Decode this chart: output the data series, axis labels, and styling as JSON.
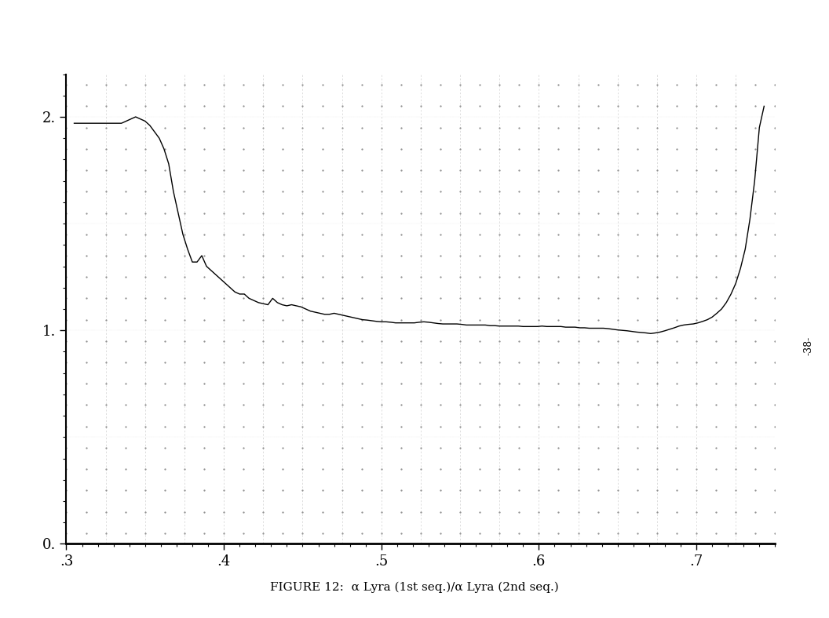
{
  "xlabel": "FIGURE 12:  α Lyra (1st seq.)/α Lyra (2nd seq.)",
  "xlim": [
    0.3,
    0.75
  ],
  "ylim": [
    0.0,
    2.2
  ],
  "xticks": [
    0.3,
    0.4,
    0.5,
    0.6,
    0.7
  ],
  "yticks": [
    0.0,
    1.0,
    2.0
  ],
  "ytick_labels": [
    "0.",
    "1.",
    "2."
  ],
  "xtick_labels": [
    ".3",
    ".4",
    ".5",
    ".6",
    ".7"
  ],
  "side_label": "-38-",
  "background_color": "#ffffff",
  "line_color": "#000000",
  "curve_x": [
    0.305,
    0.31,
    0.315,
    0.32,
    0.325,
    0.33,
    0.335,
    0.338,
    0.341,
    0.344,
    0.347,
    0.35,
    0.353,
    0.356,
    0.359,
    0.362,
    0.365,
    0.368,
    0.371,
    0.374,
    0.377,
    0.38,
    0.383,
    0.386,
    0.389,
    0.392,
    0.395,
    0.398,
    0.401,
    0.404,
    0.407,
    0.41,
    0.413,
    0.416,
    0.419,
    0.422,
    0.425,
    0.428,
    0.431,
    0.434,
    0.437,
    0.44,
    0.443,
    0.446,
    0.449,
    0.452,
    0.455,
    0.458,
    0.461,
    0.464,
    0.467,
    0.47,
    0.473,
    0.476,
    0.479,
    0.482,
    0.485,
    0.488,
    0.491,
    0.494,
    0.497,
    0.5,
    0.503,
    0.506,
    0.509,
    0.512,
    0.515,
    0.518,
    0.521,
    0.524,
    0.527,
    0.53,
    0.533,
    0.536,
    0.539,
    0.542,
    0.545,
    0.548,
    0.551,
    0.554,
    0.557,
    0.56,
    0.563,
    0.566,
    0.569,
    0.572,
    0.575,
    0.578,
    0.581,
    0.584,
    0.587,
    0.59,
    0.593,
    0.596,
    0.599,
    0.602,
    0.605,
    0.608,
    0.611,
    0.614,
    0.617,
    0.62,
    0.623,
    0.626,
    0.629,
    0.632,
    0.635,
    0.638,
    0.641,
    0.644,
    0.647,
    0.65,
    0.653,
    0.656,
    0.659,
    0.662,
    0.665,
    0.668,
    0.671,
    0.674,
    0.677,
    0.68,
    0.683,
    0.686,
    0.689,
    0.692,
    0.695,
    0.698,
    0.701,
    0.704,
    0.707,
    0.71,
    0.713,
    0.716,
    0.719,
    0.722,
    0.725,
    0.728,
    0.731,
    0.734,
    0.737,
    0.74,
    0.743
  ],
  "curve_y": [
    1.97,
    1.97,
    1.97,
    1.97,
    1.97,
    1.97,
    1.97,
    1.98,
    1.99,
    2.0,
    1.99,
    1.98,
    1.96,
    1.93,
    1.9,
    1.85,
    1.78,
    1.65,
    1.55,
    1.45,
    1.38,
    1.32,
    1.32,
    1.35,
    1.3,
    1.28,
    1.26,
    1.24,
    1.22,
    1.2,
    1.18,
    1.17,
    1.17,
    1.15,
    1.14,
    1.13,
    1.125,
    1.12,
    1.15,
    1.13,
    1.12,
    1.115,
    1.12,
    1.115,
    1.11,
    1.1,
    1.09,
    1.085,
    1.08,
    1.075,
    1.075,
    1.08,
    1.075,
    1.07,
    1.065,
    1.06,
    1.055,
    1.05,
    1.048,
    1.045,
    1.042,
    1.04,
    1.04,
    1.038,
    1.035,
    1.035,
    1.035,
    1.035,
    1.035,
    1.038,
    1.04,
    1.038,
    1.035,
    1.032,
    1.03,
    1.03,
    1.03,
    1.03,
    1.028,
    1.025,
    1.025,
    1.025,
    1.025,
    1.025,
    1.022,
    1.022,
    1.02,
    1.02,
    1.02,
    1.02,
    1.02,
    1.018,
    1.018,
    1.018,
    1.018,
    1.02,
    1.018,
    1.018,
    1.018,
    1.018,
    1.015,
    1.015,
    1.015,
    1.012,
    1.012,
    1.01,
    1.01,
    1.01,
    1.01,
    1.008,
    1.005,
    1.002,
    1.0,
    0.998,
    0.995,
    0.992,
    0.99,
    0.988,
    0.985,
    0.988,
    0.992,
    0.998,
    1.005,
    1.012,
    1.02,
    1.025,
    1.028,
    1.03,
    1.035,
    1.042,
    1.05,
    1.062,
    1.08,
    1.1,
    1.13,
    1.17,
    1.22,
    1.29,
    1.38,
    1.52,
    1.7,
    1.95,
    2.05
  ]
}
